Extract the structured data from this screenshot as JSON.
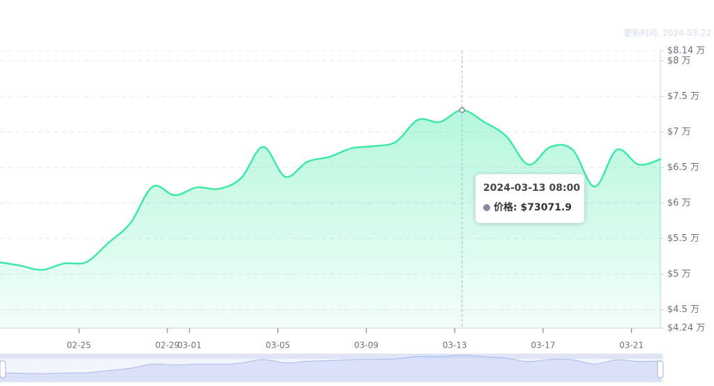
{
  "chart_data": {
    "type": "line",
    "update_note": "更新时间: 2024-03-22",
    "x": [
      "2024-02-21 08:00",
      "2024-02-22 08:00",
      "2024-02-23 08:00",
      "2024-02-24 08:00",
      "2024-02-25 08:00",
      "2024-02-26 08:00",
      "2024-02-27 08:00",
      "2024-02-28 08:00",
      "2024-02-29 08:00",
      "2024-03-01 08:00",
      "2024-03-02 08:00",
      "2024-03-03 08:00",
      "2024-03-04 08:00",
      "2024-03-05 08:00",
      "2024-03-06 08:00",
      "2024-03-07 08:00",
      "2024-03-08 08:00",
      "2024-03-09 08:00",
      "2024-03-10 08:00",
      "2024-03-11 08:00",
      "2024-03-12 08:00",
      "2024-03-13 08:00",
      "2024-03-14 08:00",
      "2024-03-15 08:00",
      "2024-03-16 08:00",
      "2024-03-17 08:00",
      "2024-03-18 08:00",
      "2024-03-19 08:00",
      "2024-03-20 08:00",
      "2024-03-21 08:00",
      "2024-03-22 08:00"
    ],
    "series": [
      {
        "color": "#3de8a8",
        "values": [
          51700,
          51200,
          50600,
          51500,
          51700,
          54400,
          57200,
          62300,
          61100,
          62200,
          62000,
          63500,
          67900,
          63700,
          65800,
          66500,
          67700,
          68000,
          68600,
          71700,
          71400,
          73071.9,
          71400,
          69400,
          65400,
          67900,
          67500,
          62300,
          67500,
          65400,
          66200
        ]
      }
    ],
    "xlim": [
      "2024-02-21 08:00",
      "2024-03-22 08:00"
    ],
    "xticks": [
      {
        "value": "2024-02-25 00:00",
        "label": "02-25"
      },
      {
        "value": "2024-02-29 00:00",
        "label": "02-29"
      },
      {
        "value": "2024-03-01 00:00",
        "label": "03-01"
      },
      {
        "value": "2024-03-05 00:00",
        "label": "03-05"
      },
      {
        "value": "2024-03-09 00:00",
        "label": "03-09"
      },
      {
        "value": "2024-03-13 00:00",
        "label": "03-13"
      },
      {
        "value": "2024-03-17 00:00",
        "label": "03-17"
      },
      {
        "value": "2024-03-21 00:00",
        "label": "03-21"
      }
    ],
    "ylim": [
      42400,
      81400
    ],
    "yticks": [
      {
        "value": 42400,
        "label": "$4.24 万"
      },
      {
        "value": 45000,
        "label": "$4.5 万"
      },
      {
        "value": 50000,
        "label": "$5 万"
      },
      {
        "value": 55000,
        "label": "$5.5 万"
      },
      {
        "value": 60000,
        "label": "$6 万"
      },
      {
        "value": 65000,
        "label": "$6.5 万"
      },
      {
        "value": 70000,
        "label": "$7 万"
      },
      {
        "value": 75000,
        "label": "$7.5 万"
      },
      {
        "value": 80000,
        "label": "$8 万"
      },
      {
        "value": 81400,
        "label": "$8.14 万"
      }
    ],
    "grid": true,
    "tooltip": {
      "x": "2024-03-13 08:00",
      "label": "价格:",
      "value": "$73071.9"
    }
  }
}
